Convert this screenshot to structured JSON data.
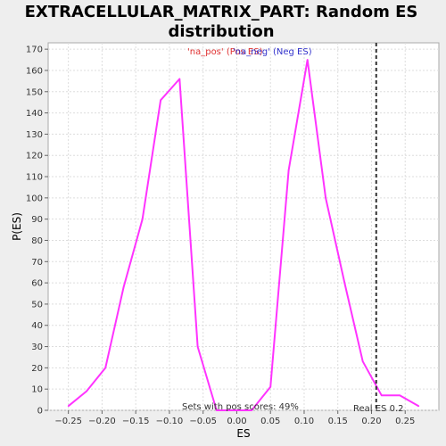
{
  "chart_data": {
    "type": "line",
    "title_line1": "EXTRACELLULAR_MATRIX_PART: Random ES",
    "title_line2": "distribution",
    "xlabel": "ES",
    "ylabel": "P(ES)",
    "xlim": [
      -0.28,
      0.3
    ],
    "ylim": [
      0,
      173
    ],
    "xticks": [
      -0.25,
      -0.2,
      -0.15,
      -0.1,
      -0.05,
      0.0,
      0.05,
      0.1,
      0.15,
      0.2,
      0.25
    ],
    "xtick_labels": [
      "−0.25",
      "−0.20",
      "−0.15",
      "−0.10",
      "−0.05",
      "0.00",
      "0.05",
      "0.10",
      "0.15",
      "0.20",
      "0.25"
    ],
    "yticks": [
      0,
      10,
      20,
      30,
      40,
      50,
      60,
      70,
      80,
      90,
      100,
      110,
      120,
      130,
      140,
      150,
      160,
      170
    ],
    "grid": true,
    "legend": [
      {
        "label": "'na_pos' (Pos ES)",
        "color": "#e03030"
      },
      {
        "label": "'na_neg' (Neg ES)",
        "color": "#3333cc"
      }
    ],
    "series": [
      {
        "color": "#ff33ff",
        "x": [
          -0.25,
          -0.223,
          -0.195,
          -0.168,
          -0.14,
          -0.113,
          -0.085,
          -0.058,
          -0.03,
          0.0,
          0.022,
          0.05,
          0.077,
          0.105,
          0.132,
          0.16,
          0.187,
          0.215,
          0.242,
          0.27
        ],
        "y": [
          2,
          9,
          20,
          58,
          90,
          146,
          156,
          30,
          0,
          0,
          0,
          11,
          113,
          165,
          100,
          60,
          23,
          7,
          7,
          2
        ]
      }
    ],
    "real_es": 0.207,
    "real_es_label": "Real ES 0.2",
    "pos_scores_label": "Sets with pos scores: 49%"
  }
}
